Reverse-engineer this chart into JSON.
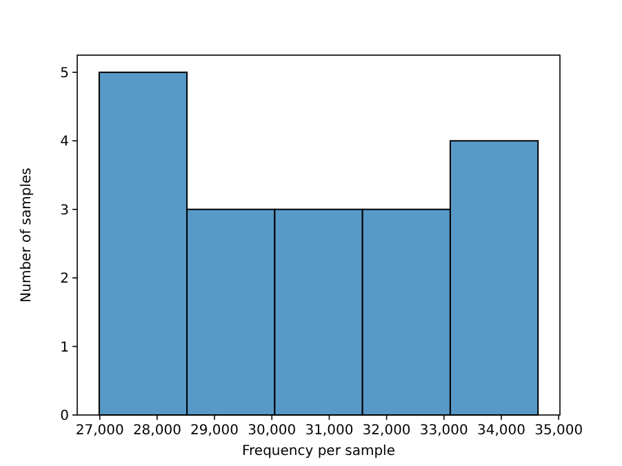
{
  "chart_data": {
    "type": "histogram",
    "xlabel": "Frequency per sample",
    "ylabel": "Number of samples",
    "bins": [
      26990,
      28520,
      30050,
      31580,
      33110,
      34640
    ],
    "values": [
      5,
      3,
      3,
      3,
      4
    ],
    "color": "#5799c7",
    "xlim": [
      26607,
      35022
    ],
    "ylim": [
      0,
      5.25
    ],
    "xticks": [
      {
        "value": 27000,
        "label": "27,000"
      },
      {
        "value": 28000,
        "label": "28,000"
      },
      {
        "value": 29000,
        "label": "29,000"
      },
      {
        "value": 30000,
        "label": "30,000"
      },
      {
        "value": 31000,
        "label": "31,000"
      },
      {
        "value": 32000,
        "label": "32,000"
      },
      {
        "value": 33000,
        "label": "33,000"
      },
      {
        "value": 34000,
        "label": "34,000"
      },
      {
        "value": 35000,
        "label": "35,000"
      }
    ],
    "yticks": [
      0,
      1,
      2,
      3,
      4,
      5
    ],
    "grid": false
  }
}
